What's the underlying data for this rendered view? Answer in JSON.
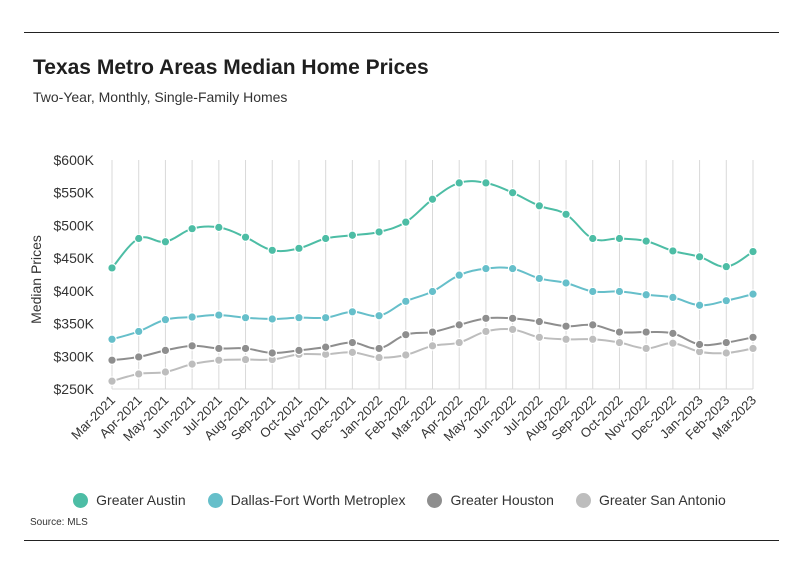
{
  "title": "Texas Metro Areas Median Home Prices",
  "subtitle": "Two-Year, Monthly, Single-Family Homes",
  "source": "Source: MLS",
  "chart_data": {
    "type": "line",
    "ylabel": "Median Prices",
    "xlabel": "",
    "ylim": [
      250000,
      600000
    ],
    "yticks": [
      250000,
      300000,
      350000,
      400000,
      450000,
      500000,
      550000,
      600000
    ],
    "ytick_labels": [
      "$250K",
      "$300K",
      "$350K",
      "$400K",
      "$450K",
      "$500K",
      "$550K",
      "$600K"
    ],
    "grid": "vertical",
    "legend": "bottom",
    "categories": [
      "Mar-2021",
      "Apr-2021",
      "May-2021",
      "Jun-2021",
      "Jul-2021",
      "Aug-2021",
      "Sep-2021",
      "Oct-2021",
      "Nov-2021",
      "Dec-2021",
      "Jan-2022",
      "Feb-2022",
      "Mar-2022",
      "Apr-2022",
      "May-2022",
      "Jun-2022",
      "Jul-2022",
      "Aug-2022",
      "Sep-2022",
      "Oct-2022",
      "Nov-2022",
      "Dec-2022",
      "Jan-2023",
      "Feb-2023",
      "Mar-2023"
    ],
    "series": [
      {
        "name": "Greater Austin",
        "color": "#4dbda5",
        "values": [
          435000,
          480000,
          475000,
          495000,
          497000,
          482000,
          462000,
          465000,
          480000,
          485000,
          490000,
          505000,
          540000,
          565000,
          565000,
          550000,
          530000,
          517000,
          480000,
          480000,
          476000,
          461000,
          452000,
          437000,
          460000
        ]
      },
      {
        "name": "Dallas-Fort Worth Metroplex",
        "color": "#66bfca",
        "values": [
          326000,
          338000,
          356000,
          360000,
          363000,
          359000,
          357000,
          359000,
          359000,
          368000,
          362000,
          384000,
          399000,
          424000,
          434000,
          434000,
          419000,
          412000,
          399000,
          399000,
          394000,
          390000,
          378000,
          385000,
          395000
        ]
      },
      {
        "name": "Greater Houston",
        "color": "#8e8e8e",
        "values": [
          294000,
          299000,
          309000,
          316000,
          312000,
          312000,
          305000,
          309000,
          314000,
          321000,
          312000,
          333000,
          337000,
          348000,
          358000,
          358000,
          353000,
          346000,
          348000,
          337000,
          337000,
          335000,
          318000,
          321000,
          329000
        ]
      },
      {
        "name": "Greater San Antonio",
        "color": "#bdbdbd",
        "values": [
          262000,
          273000,
          276000,
          288000,
          294000,
          295000,
          295000,
          303000,
          303000,
          306000,
          298000,
          302000,
          316000,
          321000,
          338000,
          341000,
          329000,
          326000,
          326000,
          321000,
          312000,
          320000,
          307000,
          305000,
          312000
        ]
      }
    ]
  }
}
